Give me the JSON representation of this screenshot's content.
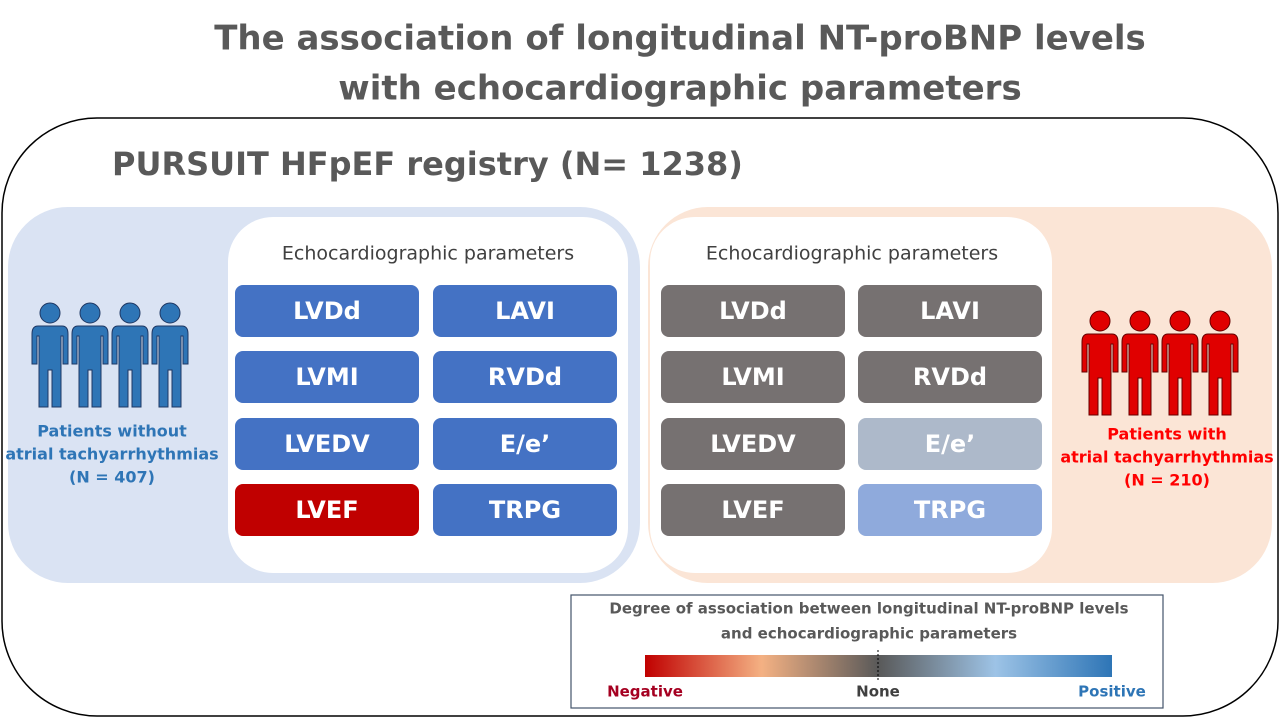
{
  "title_lines": [
    "The association of longitudinal NT-proBNP levels",
    "with echocardiographic parameters"
  ],
  "registry": "PURSUIT HFpEF registry (N= 1238)",
  "groups": [
    {
      "label_lines": [
        "Patients without",
        "atrial tachyarrhythmias",
        "(N = 407)"
      ],
      "panel_title": "Echocardiographic  parameters",
      "parameters": [
        "LVDd",
        "LAVI",
        "LVMI",
        "RVDd",
        "LVEDV",
        "E/e’",
        "LVEF",
        "TRPG"
      ]
    },
    {
      "label_lines": [
        "Patients with",
        "atrial tachyarrhythmias",
        "(N = 210)"
      ],
      "panel_title": "Echocardiographic  parameters",
      "parameters": [
        "LVDd",
        "LAVI",
        "LVMI",
        "RVDd",
        "LVEDV",
        "E/e’",
        "LVEF",
        "TRPG"
      ]
    }
  ],
  "legend": {
    "title_lines": [
      "Degree of association between longitudinal NT-proBNP levels",
      "and echocardiographic parameters"
    ],
    "labels": [
      "Negative",
      "None",
      "Positive"
    ]
  }
}
